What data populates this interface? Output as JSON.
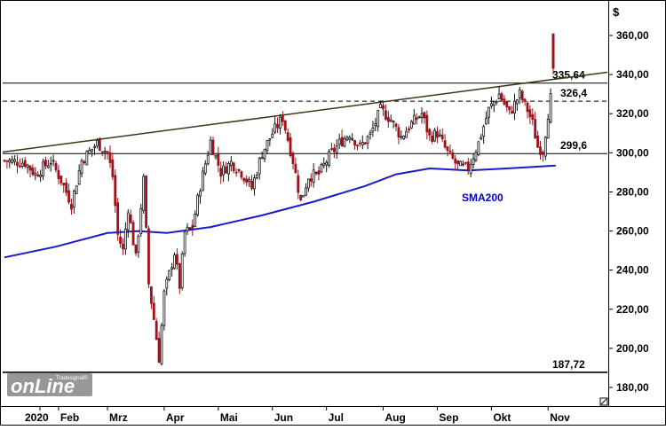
{
  "chart_data": {
    "type": "candlestick",
    "unit": "$",
    "ylim": [
      170,
      380
    ],
    "y_ticks": [
      "180,00",
      "200,00",
      "220,00",
      "240,00",
      "260,00",
      "280,00",
      "300,00",
      "320,00",
      "340,00",
      "360,00"
    ],
    "y_tick_values": [
      180,
      200,
      220,
      240,
      260,
      280,
      300,
      320,
      340,
      360
    ],
    "x_ticks": [
      "2020",
      "Feb",
      "Mrz",
      "Apr",
      "Mai",
      "Jun",
      "Jul",
      "Aug",
      "Sep",
      "Okt",
      "Nov"
    ],
    "x_tick_index": [
      0,
      21,
      40,
      62,
      83,
      104,
      125,
      147,
      168,
      189,
      211
    ],
    "levels": [
      {
        "label": "335,64",
        "value": 335.64,
        "style": "solid"
      },
      {
        "label": "326,4",
        "value": 326.4,
        "style": "dashed"
      },
      {
        "label": "299,6",
        "value": 299.6,
        "style": "solid"
      },
      {
        "label": "187,72",
        "value": 187.72,
        "style": "solid"
      }
    ],
    "trendline": {
      "from": {
        "index": 0,
        "value": 300.5
      },
      "to": {
        "index": 230,
        "value": 340.5
      }
    },
    "sma": {
      "name": "SMA200",
      "points": [
        [
          0,
          246.5
        ],
        [
          20,
          252
        ],
        [
          40,
          259
        ],
        [
          52,
          260
        ],
        [
          63,
          259
        ],
        [
          80,
          262
        ],
        [
          100,
          268
        ],
        [
          120,
          275
        ],
        [
          140,
          283
        ],
        [
          152,
          289
        ],
        [
          165,
          292
        ],
        [
          180,
          291
        ],
        [
          195,
          292
        ],
        [
          214,
          293.5
        ]
      ]
    },
    "ohlc_anchors": [
      [
        0,
        296
      ],
      [
        8,
        295
      ],
      [
        12,
        289
      ],
      [
        18,
        296
      ],
      [
        22,
        286
      ],
      [
        26,
        274
      ],
      [
        30,
        296
      ],
      [
        36,
        305
      ],
      [
        40,
        300
      ],
      [
        42,
        288
      ],
      [
        44,
        258
      ],
      [
        46,
        250
      ],
      [
        48,
        272
      ],
      [
        51,
        246
      ],
      [
        54,
        286
      ],
      [
        56,
        233
      ],
      [
        58,
        215
      ],
      [
        60,
        195
      ],
      [
        62,
        228
      ],
      [
        64,
        238
      ],
      [
        66,
        249
      ],
      [
        68,
        232
      ],
      [
        70,
        259
      ],
      [
        73,
        262
      ],
      [
        76,
        283
      ],
      [
        80,
        306
      ],
      [
        84,
        290
      ],
      [
        88,
        295
      ],
      [
        92,
        290
      ],
      [
        96,
        282
      ],
      [
        100,
        300
      ],
      [
        104,
        310
      ],
      [
        108,
        318
      ],
      [
        112,
        296
      ],
      [
        115,
        275
      ],
      [
        118,
        288
      ],
      [
        122,
        289
      ],
      [
        126,
        298
      ],
      [
        130,
        305
      ],
      [
        134,
        310
      ],
      [
        138,
        303
      ],
      [
        142,
        309
      ],
      [
        146,
        322
      ],
      [
        150,
        317
      ],
      [
        154,
        308
      ],
      [
        158,
        315
      ],
      [
        162,
        320
      ],
      [
        165,
        308
      ],
      [
        168,
        310
      ],
      [
        172,
        300
      ],
      [
        176,
        293
      ],
      [
        180,
        292
      ],
      [
        184,
        305
      ],
      [
        188,
        322
      ],
      [
        192,
        330
      ],
      [
        196,
        320
      ],
      [
        200,
        330
      ],
      [
        203,
        322
      ],
      [
        205,
        315
      ],
      [
        207,
        303
      ],
      [
        209,
        301
      ],
      [
        211,
        320
      ],
      [
        212,
        328
      ]
    ],
    "spike": {
      "index": 213,
      "open": 343,
      "close": 361,
      "high": 361,
      "low": 340
    },
    "last_index": 213
  },
  "labels": {
    "sma_name": "SMA200",
    "watermark_small": "Tradesignal®",
    "watermark_big": "onLine"
  }
}
